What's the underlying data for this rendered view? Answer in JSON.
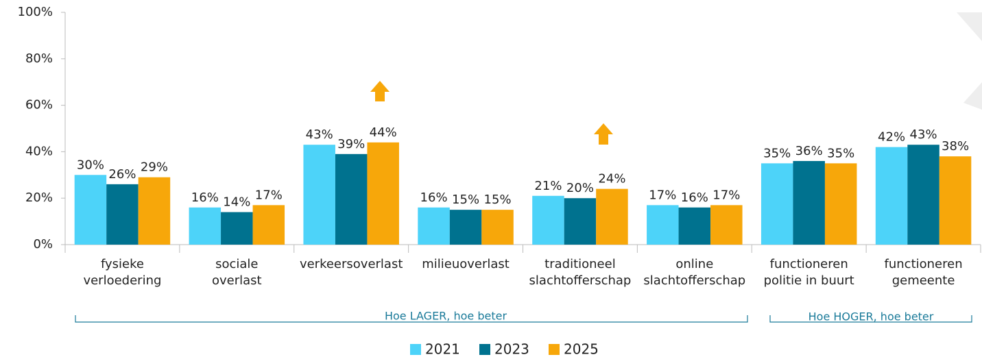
{
  "chart_data": {
    "type": "bar",
    "categories": [
      "fysieke\nverloedering",
      "sociale\noverlast",
      "verkeersoverlast",
      "milieuoverlast",
      "traditioneel\nslachtofferschap",
      "online\nslachtofferschap",
      "functioneren\npolitie in buurt",
      "functioneren\ngemeente"
    ],
    "series": [
      {
        "name": "2021",
        "color": "#4dd3f9",
        "values": [
          30,
          16,
          43,
          16,
          21,
          17,
          35,
          42
        ],
        "value_labels": [
          "30%",
          "16%",
          "43%",
          "16%",
          "21%",
          "17%",
          "35%",
          "42%"
        ]
      },
      {
        "name": "2023",
        "color": "#00728f",
        "values": [
          26,
          14,
          39,
          15,
          20,
          16,
          36,
          43
        ],
        "value_labels": [
          "26%",
          "14%",
          "39%",
          "15%",
          "20%",
          "16%",
          "36%",
          "43%"
        ]
      },
      {
        "name": "2025",
        "color": "#f7a70a",
        "values": [
          29,
          17,
          44,
          15,
          24,
          17,
          35,
          38
        ],
        "value_labels": [
          "29%",
          "17%",
          "44%",
          "15%",
          "24%",
          "17%",
          "35%",
          "38%"
        ]
      }
    ],
    "ylim": [
      0,
      100
    ],
    "yticks": [
      {
        "value": 0,
        "label": "0%"
      },
      {
        "value": 20,
        "label": "20%"
      },
      {
        "value": 40,
        "label": "40%"
      },
      {
        "value": 60,
        "label": "60%"
      },
      {
        "value": 80,
        "label": "80%"
      },
      {
        "value": 100,
        "label": "100%"
      }
    ],
    "annotations": [
      "Hoe LAGER, hoe beter",
      "Hoe HOGER, hoe beter"
    ],
    "legend": "bottom"
  }
}
